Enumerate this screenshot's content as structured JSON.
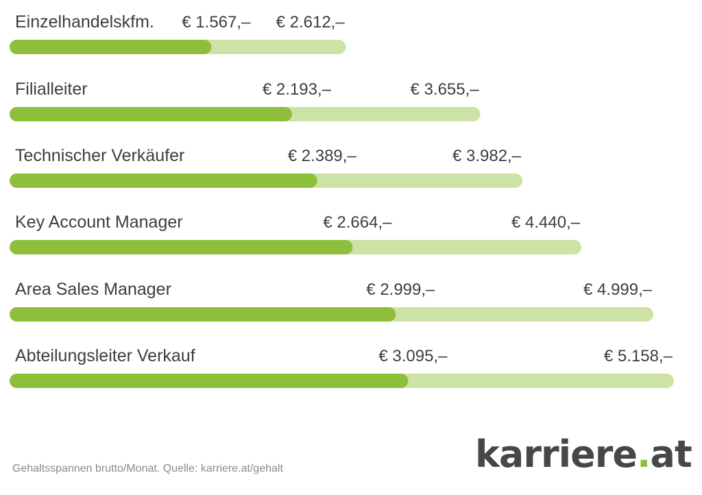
{
  "chart_data": {
    "type": "bar",
    "orientation": "horizontal",
    "series": [
      {
        "name": "",
        "color": "#8ebf3b",
        "values": [
          1567,
          2193,
          2389,
          2664,
          2999,
          3095
        ]
      },
      {
        "name": "",
        "color": "#cde3a6",
        "values": [
          2612,
          3655,
          3982,
          4440,
          4999,
          5158
        ]
      }
    ],
    "categories": [
      "Einzelhandelskfm.",
      "Filialleiter",
      "Technischer Verkäufer",
      "Key Account Manager",
      "Area Sales Manager",
      "Abteilungsleiter Verkauf"
    ],
    "rows": [
      {
        "label": "Einzelhandelskfm.",
        "low": 1567,
        "high": 2612,
        "low_label": "€ 1.567,–",
        "high_label": "€ 2.612,–"
      },
      {
        "label": "Filialleiter",
        "low": 2193,
        "high": 3655,
        "low_label": "€ 2.193,–",
        "high_label": "€ 3.655,–"
      },
      {
        "label": "Technischer Verkäufer",
        "low": 2389,
        "high": 3982,
        "low_label": "€ 2.389,–",
        "high_label": "€ 3.982,–"
      },
      {
        "label": "Key Account Manager",
        "low": 2664,
        "high": 4440,
        "low_label": "€ 2.664,–",
        "high_label": "€ 4.440,–"
      },
      {
        "label": "Area Sales Manager",
        "low": 2999,
        "high": 4999,
        "low_label": "€ 2.999,–",
        "high_label": "€ 4.999,–"
      },
      {
        "label": "Abteilungsleiter Verkauf",
        "low": 3095,
        "high": 5158,
        "low_label": "€ 3.095,–",
        "high_label": "€ 5.158,–"
      }
    ],
    "title": "",
    "xlabel": "",
    "ylabel": "",
    "xlim": [
      0,
      5158
    ],
    "grid": false,
    "legend": "none"
  },
  "footnote": "Gehaltsspannen brutto/Monat. Quelle: karriere.at/gehalt",
  "logo": {
    "text_main": "karriere",
    "text_dot": ".",
    "text_tld": "at"
  }
}
